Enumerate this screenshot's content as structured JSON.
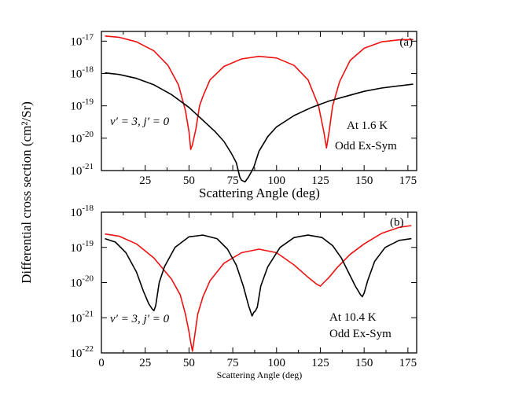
{
  "chart_data": [
    {
      "type": "line",
      "panel_label": "(a)",
      "xlabel": "Scattering Angle (deg)",
      "ylabel": "Differential cross section (cm²/Sr)",
      "yscale": "log",
      "xlim": [
        0,
        180
      ],
      "ylim_log10": [
        -21,
        -16.7
      ],
      "x_ticks": [
        25,
        50,
        75,
        100,
        125,
        150,
        175
      ],
      "y_ticks_log10": [
        -21,
        -20,
        -19,
        -18,
        -17
      ],
      "y_tick_base": "10",
      "annotation_quantum": "v′ = 3, j′ = 0",
      "annotation_temp": "At 1.6 K",
      "annotation_sym": "Odd Ex-Sym",
      "series": [
        {
          "name": "red",
          "color": "#ee1111",
          "x": [
            2,
            10,
            20,
            30,
            38,
            44,
            48,
            50,
            51,
            52,
            54,
            56,
            58,
            62,
            70,
            80,
            90,
            100,
            110,
            118,
            124,
            127,
            128.5,
            130,
            132,
            136,
            142,
            150,
            160,
            170,
            178
          ],
          "log10_y": [
            -16.84,
            -16.88,
            -17.02,
            -17.3,
            -17.75,
            -18.35,
            -19.15,
            -19.8,
            -20.35,
            -20.2,
            -19.7,
            -19.0,
            -18.7,
            -18.2,
            -17.78,
            -17.55,
            -17.47,
            -17.52,
            -17.75,
            -18.2,
            -19.0,
            -19.8,
            -20.3,
            -19.8,
            -19.0,
            -18.25,
            -17.6,
            -17.22,
            -17.02,
            -16.96,
            -16.95
          ]
        },
        {
          "name": "black",
          "color": "#000000",
          "x": [
            2,
            10,
            20,
            30,
            40,
            50,
            60,
            65,
            70,
            74,
            77,
            79,
            80,
            82,
            84,
            87,
            90,
            95,
            100,
            110,
            120,
            130,
            140,
            150,
            160,
            170,
            178
          ],
          "log10_y": [
            -17.98,
            -18.03,
            -18.15,
            -18.35,
            -18.65,
            -19.05,
            -19.55,
            -19.8,
            -20.1,
            -20.45,
            -20.75,
            -21.2,
            -21.3,
            -21.35,
            -21.2,
            -20.9,
            -20.4,
            -19.95,
            -19.65,
            -19.3,
            -19.05,
            -18.85,
            -18.7,
            -18.55,
            -18.45,
            -18.38,
            -18.33
          ]
        }
      ]
    },
    {
      "type": "line",
      "panel_label": "(b)",
      "xlabel": "Scattering Angle (deg)",
      "yscale": "log",
      "xlim": [
        0,
        180
      ],
      "ylim_log10": [
        -22,
        -18
      ],
      "x_ticks": [
        0,
        25,
        50,
        75,
        100,
        125,
        150,
        175
      ],
      "y_ticks_log10": [
        -22,
        -21,
        -20,
        -19,
        -18
      ],
      "y_tick_base": "10",
      "annotation_quantum": "v′ = 3, j′ = 0",
      "annotation_temp": "At 10.4 K",
      "annotation_sym": "Odd Ex-Sym",
      "series": [
        {
          "name": "red",
          "color": "#ee1111",
          "x": [
            2,
            10,
            20,
            30,
            40,
            45,
            48,
            50,
            51,
            52,
            53,
            55,
            58,
            62,
            70,
            80,
            90,
            100,
            110,
            118,
            123,
            125,
            127,
            130,
            135,
            142,
            150,
            160,
            170,
            177
          ],
          "log10_y": [
            -18.62,
            -18.68,
            -18.9,
            -19.3,
            -19.9,
            -20.35,
            -20.9,
            -21.4,
            -21.7,
            -21.95,
            -21.6,
            -20.9,
            -20.4,
            -19.95,
            -19.45,
            -19.15,
            -19.05,
            -19.15,
            -19.5,
            -19.85,
            -20.05,
            -20.1,
            -20.0,
            -19.85,
            -19.55,
            -19.2,
            -18.9,
            -18.6,
            -18.43,
            -18.38
          ]
        },
        {
          "name": "black",
          "color": "#000000",
          "x": [
            2,
            8,
            14,
            20,
            24,
            27,
            29,
            30,
            31,
            33,
            36,
            42,
            50,
            58,
            66,
            72,
            77,
            81,
            84,
            86,
            87,
            88,
            89,
            91,
            95,
            102,
            110,
            118,
            126,
            132,
            137,
            141,
            145,
            148,
            149,
            150,
            152,
            156,
            162,
            170,
            177
          ],
          "log10_y": [
            -18.75,
            -18.85,
            -19.15,
            -19.7,
            -20.25,
            -20.6,
            -20.75,
            -20.8,
            -20.65,
            -20.0,
            -19.55,
            -19.0,
            -18.7,
            -18.65,
            -18.75,
            -19.05,
            -19.5,
            -20.1,
            -20.65,
            -20.95,
            -20.85,
            -20.8,
            -20.7,
            -20.1,
            -19.55,
            -19.0,
            -18.72,
            -18.65,
            -18.72,
            -18.95,
            -19.3,
            -19.7,
            -20.1,
            -20.35,
            -20.4,
            -20.3,
            -19.95,
            -19.4,
            -19.0,
            -18.8,
            -18.75
          ]
        }
      ]
    }
  ],
  "y_axis_label": "Differential cross section (cm²/Sr)"
}
